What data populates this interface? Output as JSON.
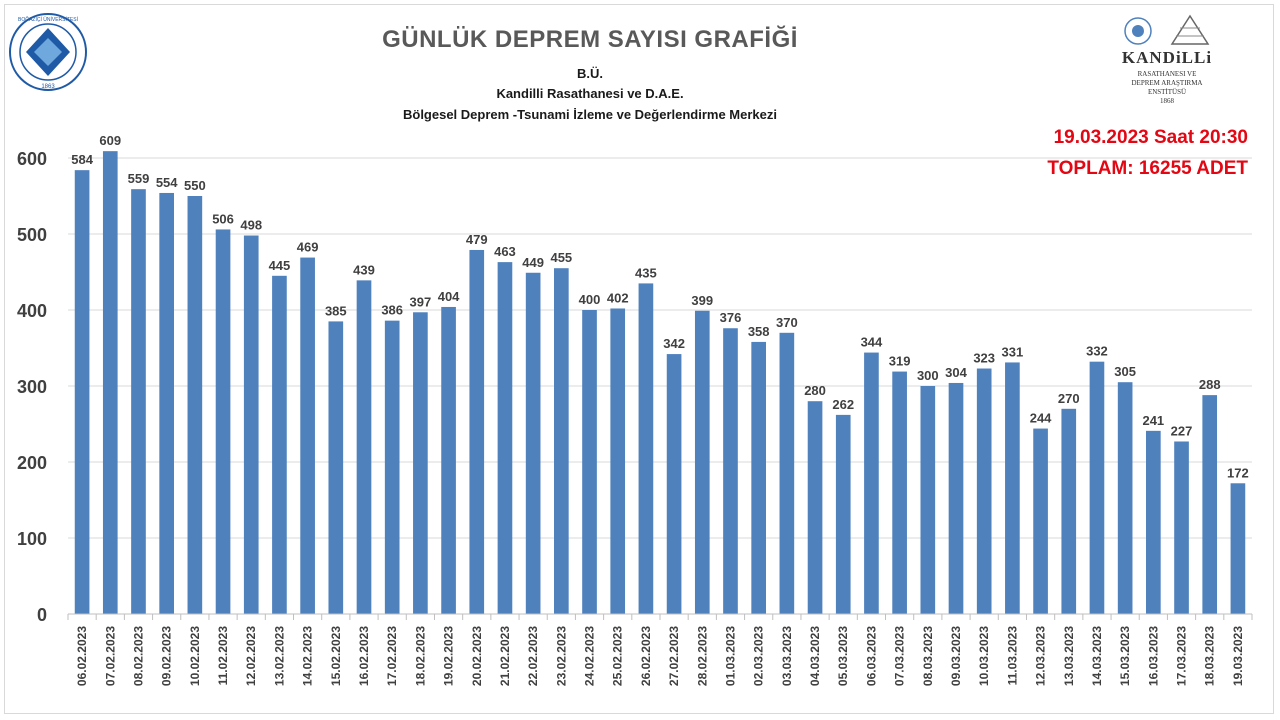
{
  "header": {
    "title": "GÜNLÜK  DEPREM SAYISI GRAFİĞİ",
    "line1": "B.Ü.",
    "line2": "Kandilli Rasathanesi ve D.A.E.",
    "line3": "Bölgesel Deprem -Tsunami İzleme ve Değerlendirme Merkezi",
    "timestamp": "19.03.2023 Saat 20:30",
    "total": "TOPLAM:  16255 ADET",
    "accent_color": "#e30613"
  },
  "logos": {
    "left": {
      "icon": "bogazici-university-seal",
      "text": "BOĞAZİÇİ ÜNİVERSİTESİ",
      "year": "1863"
    },
    "right": {
      "icon": "kandilli-observatory-logo",
      "name": "KANDiLLi",
      "line1": "RASATHANESI VE",
      "line2": "DEPREM ARAŞTIRMA",
      "line3": "ENSTİTÜSÜ",
      "year": "1868"
    }
  },
  "chart_data": {
    "type": "bar",
    "bar_color": "#4f81bd",
    "label_color": "#404040",
    "grid": true,
    "ylim": [
      0,
      600
    ],
    "yticks": [
      0,
      100,
      200,
      300,
      400,
      500,
      600
    ],
    "categories": [
      "06.02.2023",
      "07.02.2023",
      "08.02.2023",
      "09.02.2023",
      "10.02.2023",
      "11.02.2023",
      "12.02.2023",
      "13.02.2023",
      "14.02.2023",
      "15.02.2023",
      "16.02.2023",
      "17.02.2023",
      "18.02.2023",
      "19.02.2023",
      "20.02.2023",
      "21.02.2023",
      "22.02.2023",
      "23.02.2023",
      "24.02.2023",
      "25.02.2023",
      "26.02.2023",
      "27.02.2023",
      "28.02.2023",
      "01.03.2023",
      "02.03.2023",
      "03.03.2023",
      "04.03.2023",
      "05.03.2023",
      "06.03.2023",
      "07.03.2023",
      "08.03.2023",
      "09.03.2023",
      "10.03.2023",
      "11.03.2023",
      "12.03.2023",
      "13.03.2023",
      "14.03.2023",
      "15.03.2023",
      "16.03.2023",
      "17.03.2023",
      "18.03.2023",
      "19.03.2023"
    ],
    "values": [
      584,
      609,
      559,
      554,
      550,
      506,
      498,
      445,
      469,
      385,
      439,
      386,
      397,
      404,
      479,
      463,
      449,
      455,
      400,
      402,
      435,
      342,
      399,
      376,
      358,
      370,
      280,
      262,
      344,
      319,
      300,
      304,
      323,
      331,
      244,
      270,
      332,
      305,
      241,
      227,
      288,
      172
    ]
  }
}
